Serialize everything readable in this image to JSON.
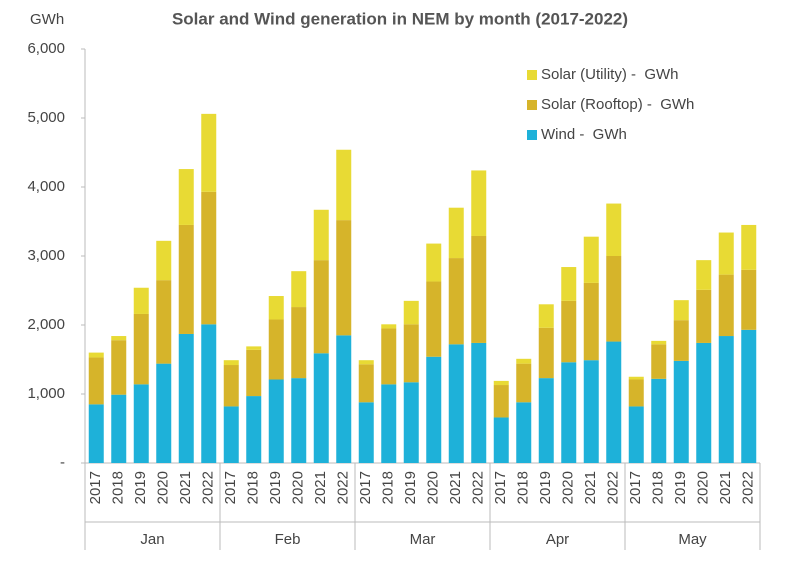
{
  "chart_data": {
    "type": "stacked-bar",
    "title": "Solar and Wind generation in NEM by month (2017-2022)",
    "y_label": "GWh",
    "categories": [
      "2017",
      "2018",
      "2019",
      "2020",
      "2021",
      "2022",
      "2017",
      "2018",
      "2019",
      "2020",
      "2021",
      "2022",
      "2017",
      "2018",
      "2019",
      "2020",
      "2021",
      "2022",
      "2017",
      "2018",
      "2019",
      "2020",
      "2021",
      "2022",
      "2017",
      "2018",
      "2019",
      "2020",
      "2021",
      "2022"
    ],
    "groups": [
      "Jan",
      "Feb",
      "Mar",
      "Apr",
      "May"
    ],
    "group_size": 6,
    "series": [
      {
        "name": "Wind -  GWh",
        "color": "#1eb1d9",
        "values": [
          850,
          990,
          1140,
          1440,
          1870,
          2010,
          820,
          970,
          1210,
          1230,
          1590,
          1850,
          880,
          1140,
          1170,
          1540,
          1720,
          1740,
          660,
          880,
          1230,
          1460,
          1490,
          1760,
          820,
          1220,
          1480,
          1740,
          1840,
          1930
        ]
      },
      {
        "name": "Solar (Rooftop) -  GWh",
        "color": "#d6b42a",
        "values": [
          680,
          790,
          1020,
          1210,
          1580,
          1920,
          600,
          670,
          870,
          1030,
          1350,
          1670,
          550,
          810,
          840,
          1090,
          1250,
          1550,
          470,
          560,
          730,
          890,
          1120,
          1240,
          390,
          500,
          590,
          770,
          890,
          870
        ]
      },
      {
        "name": "Solar (Utility) -  GWh",
        "color": "#e8da34",
        "values": [
          70,
          60,
          380,
          570,
          810,
          1130,
          70,
          50,
          340,
          520,
          730,
          1020,
          60,
          60,
          340,
          550,
          730,
          950,
          60,
          70,
          340,
          490,
          670,
          760,
          40,
          50,
          290,
          430,
          610,
          650
        ]
      }
    ],
    "ylim": [
      0,
      6000
    ],
    "yticks": [
      {
        "value": 0,
        "label": "-"
      },
      {
        "value": 1000,
        "label": "1,000"
      },
      {
        "value": 2000,
        "label": "2,000"
      },
      {
        "value": 3000,
        "label": "3,000"
      },
      {
        "value": 4000,
        "label": "4,000"
      },
      {
        "value": 5000,
        "label": "5,000"
      },
      {
        "value": 6000,
        "label": "6,000"
      }
    ],
    "legend": "top-right",
    "grid": false
  }
}
